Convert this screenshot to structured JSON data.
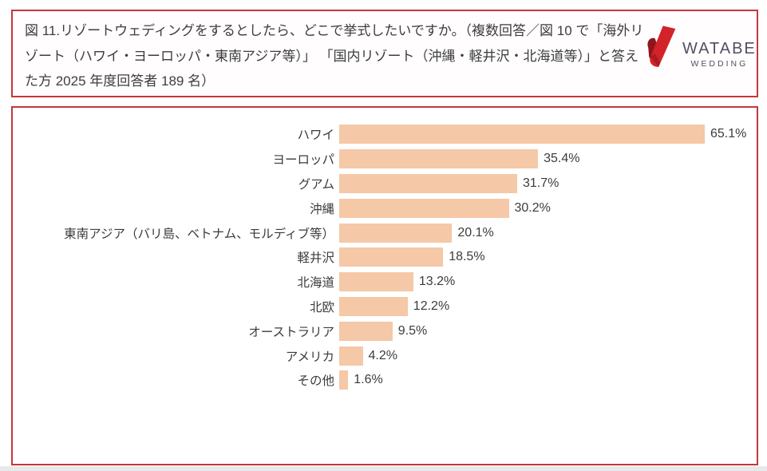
{
  "header": {
    "question": "図 11.リゾートウェディングをするとしたら、どこで挙式したいですか。（複数回答／図 10 で「海外リゾート（ハワイ・ヨーロッパ・東南アジア等）」 「国内リゾート（沖縄・軽井沢・北海道等）」と答えた方 2025 年度回答者 189 名）",
    "logo": {
      "brand": "WATABE",
      "sub": "WEDDING"
    }
  },
  "chart_data": {
    "type": "bar",
    "orientation": "horizontal",
    "title": "",
    "xlabel": "",
    "ylabel": "",
    "xlim": [
      0,
      70
    ],
    "grid": false,
    "legend": false,
    "value_suffix": "%",
    "categories": [
      "ハワイ",
      "ヨーロッパ",
      "グアム",
      "沖縄",
      "東南アジア（バリ島、ベトナム、モルディブ等）",
      "軽井沢",
      "北海道",
      "北欧",
      "オーストラリア",
      "アメリカ",
      "その他"
    ],
    "values": [
      65.1,
      35.4,
      31.7,
      30.2,
      20.1,
      18.5,
      13.2,
      12.2,
      9.5,
      4.2,
      1.6
    ],
    "bar_color": "#f5c8a7",
    "label_color": "#3b3b3b"
  },
  "colors": {
    "box_border": "#c5373b",
    "logo_red": "#d2232a",
    "logo_dark_red": "#8e151b",
    "logo_text": "#514f62"
  }
}
